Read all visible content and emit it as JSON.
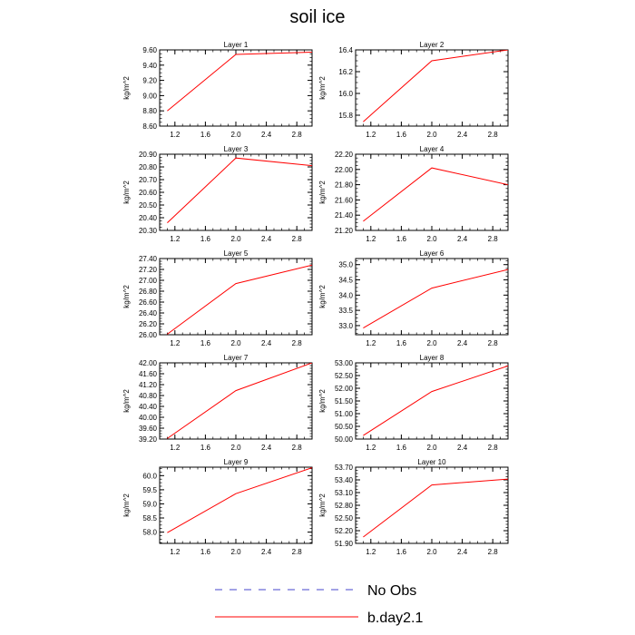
{
  "title": "soil ice",
  "colors": {
    "model_line": "#ff0000",
    "obs_line": "#4444cc",
    "axis": "#000000"
  },
  "legend": [
    {
      "label": "No Obs",
      "style": "dashed",
      "color": "#4444cc"
    },
    {
      "label": "b.day2.1",
      "style": "solid",
      "color": "#ff0000"
    }
  ],
  "chart_data": [
    {
      "type": "line",
      "title": "Layer 1",
      "ylabel": "kg/m^2",
      "xlim": [
        1.0,
        3.0
      ],
      "xticks": [
        "1.2",
        "1.6",
        "2.0",
        "2.4",
        "2.8"
      ],
      "ylim": [
        8.6,
        9.6
      ],
      "yticks": [
        "8.60",
        "8.80",
        "9.00",
        "9.20",
        "9.40",
        "9.60"
      ],
      "series": [
        {
          "x": [
            1.1,
            2.0,
            3.0
          ],
          "values": [
            8.8,
            9.54,
            9.57
          ]
        }
      ]
    },
    {
      "type": "line",
      "title": "Layer 2",
      "ylabel": "kg/m^2",
      "xlim": [
        1.0,
        3.0
      ],
      "xticks": [
        "1.2",
        "1.6",
        "2.0",
        "2.4",
        "2.8"
      ],
      "ylim": [
        15.7,
        16.4
      ],
      "yticks": [
        "15.8",
        "16.0",
        "16.2",
        "16.4"
      ],
      "series": [
        {
          "x": [
            1.1,
            2.0,
            3.0
          ],
          "values": [
            15.74,
            16.3,
            16.4
          ]
        }
      ]
    },
    {
      "type": "line",
      "title": "Layer 3",
      "ylabel": "kg/m^2",
      "xlim": [
        1.0,
        3.0
      ],
      "xticks": [
        "1.2",
        "1.6",
        "2.0",
        "2.4",
        "2.8"
      ],
      "ylim": [
        20.3,
        20.9
      ],
      "yticks": [
        "20.30",
        "20.40",
        "20.50",
        "20.60",
        "20.70",
        "20.80",
        "20.90"
      ],
      "series": [
        {
          "x": [
            1.1,
            2.0,
            3.0
          ],
          "values": [
            20.36,
            20.87,
            20.81
          ]
        }
      ]
    },
    {
      "type": "line",
      "title": "Layer 4",
      "ylabel": "kg/m^2",
      "xlim": [
        1.0,
        3.0
      ],
      "xticks": [
        "1.2",
        "1.6",
        "2.0",
        "2.4",
        "2.8"
      ],
      "ylim": [
        21.2,
        22.2
      ],
      "yticks": [
        "21.20",
        "21.40",
        "21.60",
        "21.80",
        "22.00",
        "22.20"
      ],
      "series": [
        {
          "x": [
            1.1,
            2.0,
            3.0
          ],
          "values": [
            21.32,
            22.02,
            21.8
          ]
        }
      ]
    },
    {
      "type": "line",
      "title": "Layer 5",
      "ylabel": "kg/m^2",
      "xlim": [
        1.0,
        3.0
      ],
      "xticks": [
        "1.2",
        "1.6",
        "2.0",
        "2.4",
        "2.8"
      ],
      "ylim": [
        26.0,
        27.4
      ],
      "yticks": [
        "26.00",
        "26.20",
        "26.40",
        "26.60",
        "26.80",
        "27.00",
        "27.20",
        "27.40"
      ],
      "series": [
        {
          "x": [
            1.1,
            2.0,
            3.0
          ],
          "values": [
            26.01,
            26.94,
            27.28
          ]
        }
      ]
    },
    {
      "type": "line",
      "title": "Layer 6",
      "ylabel": "kg/m^2",
      "xlim": [
        1.0,
        3.0
      ],
      "xticks": [
        "1.2",
        "1.6",
        "2.0",
        "2.4",
        "2.8"
      ],
      "ylim": [
        32.7,
        35.2
      ],
      "yticks": [
        "33.0",
        "33.5",
        "34.0",
        "34.5",
        "35.0"
      ],
      "series": [
        {
          "x": [
            1.1,
            2.0,
            3.0
          ],
          "values": [
            32.92,
            34.23,
            34.84
          ]
        }
      ]
    },
    {
      "type": "line",
      "title": "Layer 7",
      "ylabel": "kg/m^2",
      "xlim": [
        1.0,
        3.0
      ],
      "xticks": [
        "1.2",
        "1.6",
        "2.0",
        "2.4",
        "2.8"
      ],
      "ylim": [
        39.2,
        42.0
      ],
      "yticks": [
        "39.20",
        "39.60",
        "40.00",
        "40.40",
        "40.80",
        "41.20",
        "41.60",
        "42.00"
      ],
      "series": [
        {
          "x": [
            1.1,
            2.0,
            3.0
          ],
          "values": [
            39.22,
            40.98,
            42.0
          ]
        }
      ]
    },
    {
      "type": "line",
      "title": "Layer 8",
      "ylabel": "kg/m^2",
      "xlim": [
        1.0,
        3.0
      ],
      "xticks": [
        "1.2",
        "1.6",
        "2.0",
        "2.4",
        "2.8"
      ],
      "ylim": [
        50.0,
        53.0
      ],
      "yticks": [
        "50.00",
        "50.50",
        "51.00",
        "51.50",
        "52.00",
        "52.50",
        "53.00"
      ],
      "series": [
        {
          "x": [
            1.1,
            2.0,
            3.0
          ],
          "values": [
            50.14,
            51.87,
            52.88
          ]
        }
      ]
    },
    {
      "type": "line",
      "title": "Layer 9",
      "ylabel": "kg/m^2",
      "xlim": [
        1.0,
        3.0
      ],
      "xticks": [
        "1.2",
        "1.6",
        "2.0",
        "2.4",
        "2.8"
      ],
      "ylim": [
        57.6,
        60.3
      ],
      "yticks": [
        "58.0",
        "58.5",
        "59.0",
        "59.5",
        "60.0"
      ],
      "series": [
        {
          "x": [
            1.1,
            2.0,
            3.0
          ],
          "values": [
            57.98,
            59.36,
            60.28
          ]
        }
      ]
    },
    {
      "type": "line",
      "title": "Layer 10",
      "ylabel": "kg/m^2",
      "xlim": [
        1.0,
        3.0
      ],
      "xticks": [
        "1.2",
        "1.6",
        "2.0",
        "2.4",
        "2.8"
      ],
      "ylim": [
        51.9,
        53.7
      ],
      "yticks": [
        "51.90",
        "52.20",
        "52.50",
        "52.80",
        "53.10",
        "53.40",
        "53.70"
      ],
      "series": [
        {
          "x": [
            1.1,
            2.0,
            3.0
          ],
          "values": [
            52.05,
            53.28,
            53.42
          ]
        }
      ]
    }
  ]
}
